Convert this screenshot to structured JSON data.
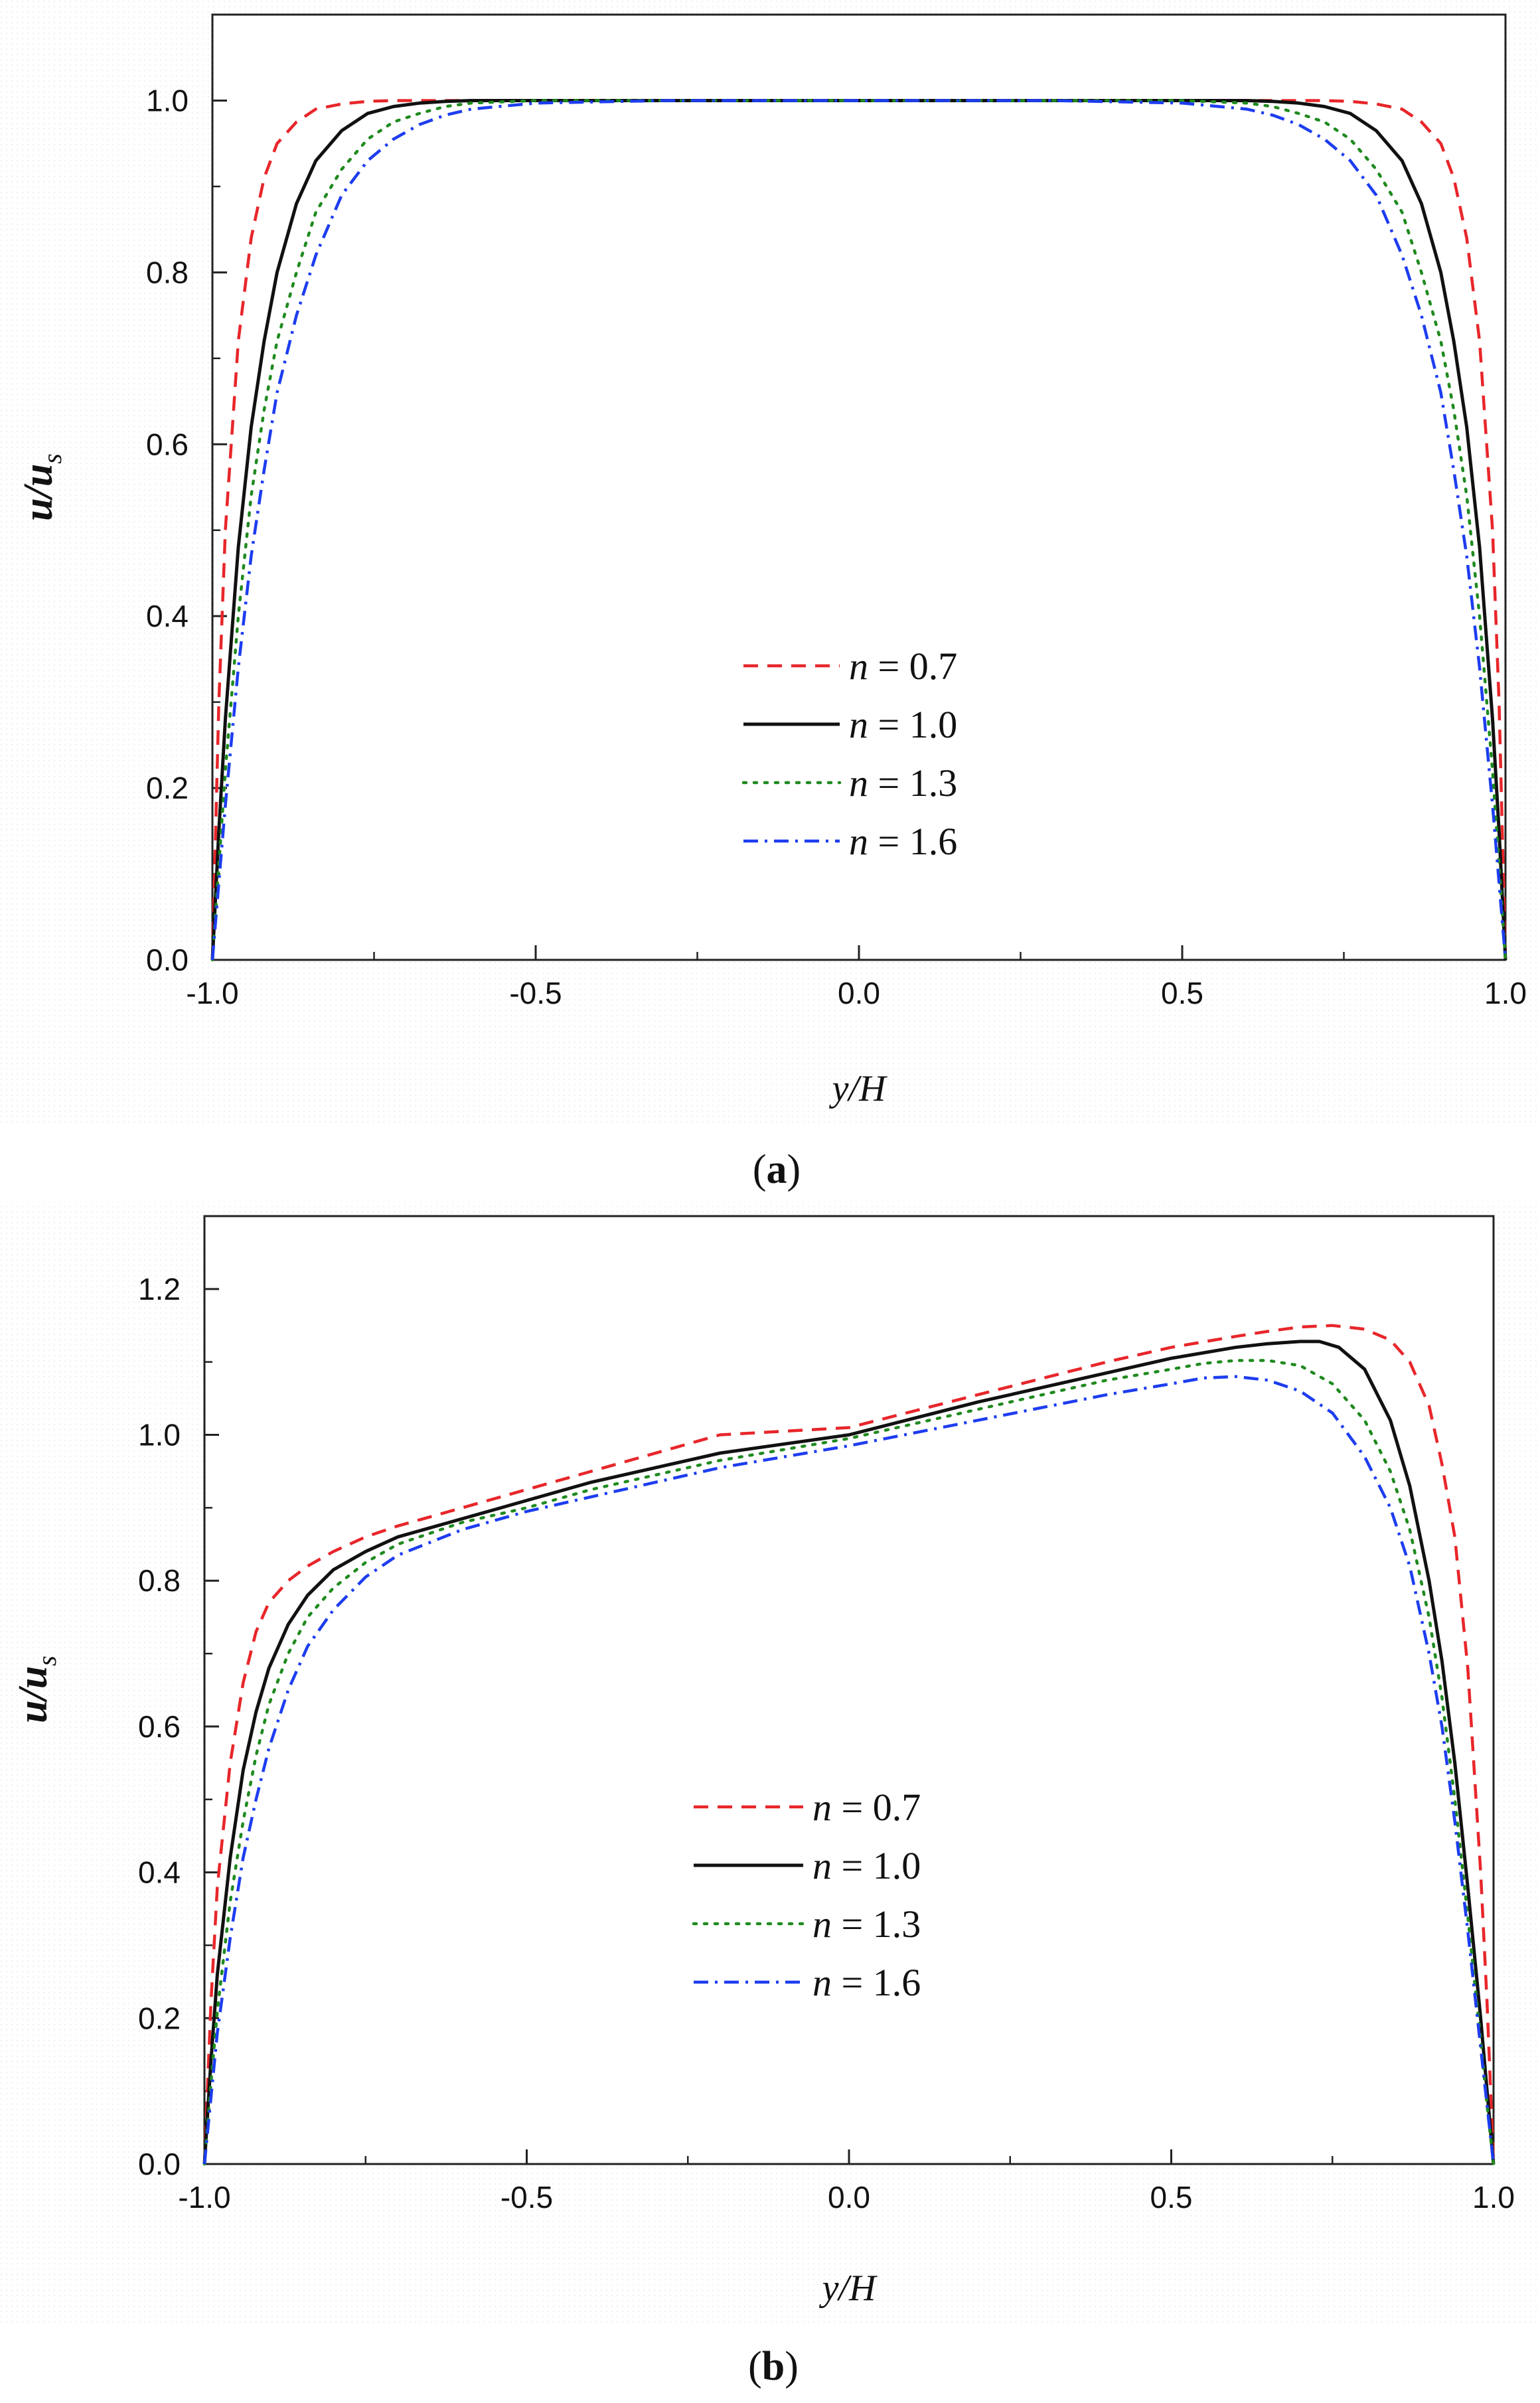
{
  "chart_data": [
    {
      "type": "line",
      "panel": "a",
      "caption_letter": "a",
      "xlabel": "y/H",
      "ylabel_main": "u/u",
      "ylabel_sub": "s",
      "xlim": [
        -1.0,
        1.0
      ],
      "ylim": [
        0.0,
        1.1
      ],
      "xticks": [
        -1.0,
        -0.5,
        0.0,
        0.5,
        1.0
      ],
      "xtick_labels": [
        "-1.0",
        "-0.5",
        "0.0",
        "0.5",
        "1.0"
      ],
      "yticks": [
        0.0,
        0.2,
        0.4,
        0.6,
        0.8,
        1.0
      ],
      "ytick_labels": [
        "0.0",
        "0.2",
        "0.4",
        "0.6",
        "0.8",
        "1.0"
      ],
      "grid": false,
      "legend_position": "center",
      "series": [
        {
          "name": "n = 0.7",
          "label_var": "n",
          "label_val": " = 0.7",
          "color": "#e8262a",
          "dash": "dashed",
          "x": [
            -1.0,
            -0.99,
            -0.98,
            -0.96,
            -0.94,
            -0.92,
            -0.9,
            -0.87,
            -0.84,
            -0.8,
            -0.76,
            -0.72,
            -0.68,
            -0.64,
            -0.6,
            -0.5,
            -0.3,
            0.0,
            0.3,
            0.5,
            0.6,
            0.64,
            0.68,
            0.72,
            0.76,
            0.8,
            0.84,
            0.87,
            0.9,
            0.92,
            0.94,
            0.96,
            0.98,
            0.99,
            1.0
          ],
          "y": [
            0.0,
            0.3,
            0.5,
            0.72,
            0.84,
            0.91,
            0.95,
            0.975,
            0.99,
            0.996,
            0.999,
            1.0,
            1.0,
            1.0,
            1.0,
            1.0,
            1.0,
            1.0,
            1.0,
            1.0,
            1.0,
            1.0,
            1.0,
            1.0,
            0.999,
            0.996,
            0.99,
            0.975,
            0.95,
            0.91,
            0.84,
            0.72,
            0.5,
            0.3,
            0.0
          ]
        },
        {
          "name": "n = 1.0",
          "label_var": "n",
          "label_val": " = 1.0",
          "color": "#111111",
          "dash": "solid",
          "x": [
            -1.0,
            -0.99,
            -0.98,
            -0.96,
            -0.94,
            -0.92,
            -0.9,
            -0.87,
            -0.84,
            -0.8,
            -0.76,
            -0.72,
            -0.68,
            -0.64,
            -0.6,
            -0.5,
            -0.3,
            0.0,
            0.3,
            0.5,
            0.6,
            0.64,
            0.68,
            0.72,
            0.76,
            0.8,
            0.84,
            0.87,
            0.9,
            0.92,
            0.94,
            0.96,
            0.98,
            0.99,
            1.0
          ],
          "y": [
            0.0,
            0.15,
            0.28,
            0.48,
            0.62,
            0.72,
            0.8,
            0.88,
            0.93,
            0.965,
            0.985,
            0.993,
            0.997,
            0.999,
            1.0,
            1.0,
            1.0,
            1.0,
            1.0,
            1.0,
            1.0,
            0.999,
            0.997,
            0.993,
            0.985,
            0.965,
            0.93,
            0.88,
            0.8,
            0.72,
            0.62,
            0.48,
            0.28,
            0.15,
            0.0
          ]
        },
        {
          "name": "n = 1.3",
          "label_var": "n",
          "label_val": " = 1.3",
          "color": "#1f8a1f",
          "dash": "dotted",
          "x": [
            -1.0,
            -0.99,
            -0.98,
            -0.96,
            -0.94,
            -0.92,
            -0.9,
            -0.87,
            -0.84,
            -0.8,
            -0.76,
            -0.72,
            -0.68,
            -0.64,
            -0.6,
            -0.5,
            -0.3,
            0.0,
            0.3,
            0.5,
            0.6,
            0.64,
            0.68,
            0.72,
            0.76,
            0.8,
            0.84,
            0.87,
            0.9,
            0.92,
            0.94,
            0.96,
            0.98,
            0.99,
            1.0
          ],
          "y": [
            0.0,
            0.11,
            0.22,
            0.4,
            0.54,
            0.64,
            0.72,
            0.8,
            0.87,
            0.92,
            0.955,
            0.975,
            0.985,
            0.993,
            0.997,
            1.0,
            1.0,
            1.0,
            1.0,
            1.0,
            0.997,
            0.993,
            0.985,
            0.975,
            0.955,
            0.92,
            0.87,
            0.8,
            0.72,
            0.64,
            0.54,
            0.4,
            0.22,
            0.11,
            0.0
          ]
        },
        {
          "name": "n = 1.6",
          "label_var": "n",
          "label_val": " = 1.6",
          "color": "#1d3df0",
          "dash": "dashdot",
          "x": [
            -1.0,
            -0.99,
            -0.98,
            -0.96,
            -0.94,
            -0.92,
            -0.9,
            -0.87,
            -0.84,
            -0.8,
            -0.76,
            -0.72,
            -0.68,
            -0.64,
            -0.6,
            -0.5,
            -0.3,
            0.0,
            0.3,
            0.5,
            0.6,
            0.64,
            0.68,
            0.72,
            0.76,
            0.8,
            0.84,
            0.87,
            0.9,
            0.92,
            0.94,
            0.96,
            0.98,
            0.99,
            1.0
          ],
          "y": [
            0.0,
            0.09,
            0.18,
            0.34,
            0.47,
            0.57,
            0.66,
            0.75,
            0.82,
            0.89,
            0.93,
            0.955,
            0.972,
            0.983,
            0.99,
            0.997,
            1.0,
            1.0,
            1.0,
            0.997,
            0.99,
            0.983,
            0.972,
            0.955,
            0.93,
            0.89,
            0.82,
            0.75,
            0.66,
            0.57,
            0.47,
            0.34,
            0.18,
            0.09,
            0.0
          ]
        }
      ]
    },
    {
      "type": "line",
      "panel": "b",
      "caption_letter": "b",
      "xlabel": "y/H",
      "ylabel_main": "u/u",
      "ylabel_sub": "s",
      "xlim": [
        -1.0,
        1.0
      ],
      "ylim": [
        0.0,
        1.3
      ],
      "xticks": [
        -1.0,
        -0.5,
        0.0,
        0.5,
        1.0
      ],
      "xtick_labels": [
        "-1.0",
        "-0.5",
        "0.0",
        "0.5",
        "1.0"
      ],
      "yticks": [
        0.0,
        0.2,
        0.4,
        0.6,
        0.8,
        1.0,
        1.2
      ],
      "ytick_labels": [
        "0.0",
        "0.2",
        "0.4",
        "0.6",
        "0.8",
        "1.0",
        "1.2"
      ],
      "grid": false,
      "legend_position": "center",
      "series": [
        {
          "name": "n = 0.7",
          "label_var": "n",
          "label_val": " = 0.7",
          "color": "#e8262a",
          "dash": "dashed",
          "x": [
            -1.0,
            -0.99,
            -0.98,
            -0.96,
            -0.94,
            -0.92,
            -0.9,
            -0.87,
            -0.84,
            -0.8,
            -0.75,
            -0.7,
            -0.6,
            -0.5,
            -0.4,
            -0.2,
            0.0,
            0.2,
            0.4,
            0.5,
            0.6,
            0.65,
            0.7,
            0.75,
            0.8,
            0.84,
            0.87,
            0.9,
            0.92,
            0.94,
            0.96,
            0.98,
            0.99,
            1.0
          ],
          "y": [
            0.0,
            0.22,
            0.38,
            0.55,
            0.66,
            0.73,
            0.77,
            0.8,
            0.82,
            0.84,
            0.86,
            0.875,
            0.9,
            0.925,
            0.95,
            1.0,
            1.01,
            1.055,
            1.1,
            1.12,
            1.135,
            1.142,
            1.148,
            1.15,
            1.145,
            1.13,
            1.1,
            1.04,
            0.96,
            0.86,
            0.68,
            0.4,
            0.22,
            0.0
          ]
        },
        {
          "name": "n = 1.0",
          "label_var": "n",
          "label_val": " = 1.0",
          "color": "#111111",
          "dash": "solid",
          "x": [
            -1.0,
            -0.99,
            -0.98,
            -0.96,
            -0.94,
            -0.92,
            -0.9,
            -0.87,
            -0.84,
            -0.8,
            -0.75,
            -0.7,
            -0.6,
            -0.5,
            -0.4,
            -0.2,
            0.0,
            0.2,
            0.4,
            0.5,
            0.6,
            0.65,
            0.7,
            0.73,
            0.76,
            0.8,
            0.84,
            0.87,
            0.9,
            0.92,
            0.94,
            0.96,
            0.98,
            0.99,
            1.0
          ],
          "y": [
            0.0,
            0.14,
            0.26,
            0.42,
            0.54,
            0.62,
            0.68,
            0.74,
            0.78,
            0.815,
            0.84,
            0.86,
            0.885,
            0.91,
            0.935,
            0.975,
            1.0,
            1.045,
            1.085,
            1.105,
            1.12,
            1.125,
            1.128,
            1.128,
            1.12,
            1.09,
            1.02,
            0.93,
            0.8,
            0.69,
            0.55,
            0.38,
            0.2,
            0.1,
            0.0
          ]
        },
        {
          "name": "n = 1.3",
          "label_var": "n",
          "label_val": " = 1.3",
          "color": "#1f8a1f",
          "dash": "dotted",
          "x": [
            -1.0,
            -0.99,
            -0.98,
            -0.96,
            -0.94,
            -0.92,
            -0.9,
            -0.87,
            -0.84,
            -0.8,
            -0.75,
            -0.7,
            -0.6,
            -0.5,
            -0.4,
            -0.2,
            0.0,
            0.2,
            0.4,
            0.5,
            0.55,
            0.6,
            0.65,
            0.7,
            0.75,
            0.8,
            0.84,
            0.87,
            0.9,
            0.92,
            0.94,
            0.96,
            0.98,
            0.99,
            1.0
          ],
          "y": [
            0.0,
            0.11,
            0.21,
            0.36,
            0.47,
            0.56,
            0.63,
            0.7,
            0.75,
            0.79,
            0.825,
            0.85,
            0.88,
            0.9,
            0.925,
            0.965,
            0.995,
            1.035,
            1.075,
            1.09,
            1.098,
            1.102,
            1.102,
            1.095,
            1.07,
            1.02,
            0.95,
            0.87,
            0.75,
            0.64,
            0.5,
            0.34,
            0.17,
            0.08,
            0.0
          ]
        },
        {
          "name": "n = 1.6",
          "label_var": "n",
          "label_val": " = 1.6",
          "color": "#1d3df0",
          "dash": "dashdot",
          "x": [
            -1.0,
            -0.99,
            -0.98,
            -0.96,
            -0.94,
            -0.92,
            -0.9,
            -0.87,
            -0.84,
            -0.8,
            -0.75,
            -0.7,
            -0.6,
            -0.5,
            -0.4,
            -0.2,
            0.0,
            0.2,
            0.4,
            0.5,
            0.55,
            0.6,
            0.65,
            0.7,
            0.75,
            0.8,
            0.84,
            0.87,
            0.9,
            0.92,
            0.94,
            0.96,
            0.98,
            0.99,
            1.0
          ],
          "y": [
            0.0,
            0.09,
            0.18,
            0.31,
            0.42,
            0.5,
            0.57,
            0.65,
            0.71,
            0.76,
            0.805,
            0.835,
            0.87,
            0.895,
            0.915,
            0.955,
            0.985,
            1.02,
            1.055,
            1.07,
            1.078,
            1.08,
            1.075,
            1.06,
            1.03,
            0.97,
            0.9,
            0.82,
            0.7,
            0.6,
            0.47,
            0.32,
            0.16,
            0.08,
            0.0
          ]
        }
      ]
    }
  ]
}
